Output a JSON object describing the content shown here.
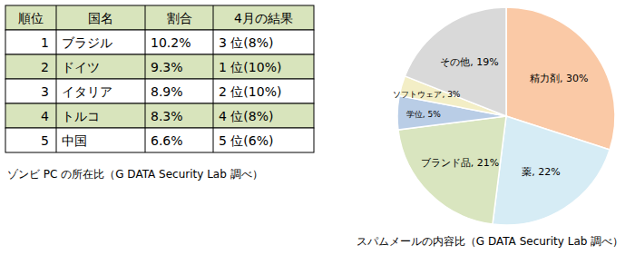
{
  "table": {
    "header": [
      "順位",
      "国名",
      "割合",
      "4月の結果"
    ],
    "rows": [
      [
        1,
        "ブラジル",
        "10.2%",
        "3 位(8%)"
      ],
      [
        2,
        "ドイツ",
        "9.3%",
        "1 位(10%)"
      ],
      [
        3,
        "イタリア",
        "8.9%",
        "2 位(10%)"
      ],
      [
        4,
        "トルコ",
        "8.3%",
        "4 位(8%)"
      ],
      [
        5,
        "中国",
        "6.6%",
        "5 位(6%)"
      ]
    ],
    "caption": "ゾンビ PC の所在比（G DATA Security Lab 調べ）"
  },
  "chart_data": {
    "type": "pie",
    "title": "スパムメールの内容比（G DATA Security Lab 調べ）",
    "categories": [
      "精力剤",
      "薬",
      "ブランド品",
      "学位",
      "ソフトウェア",
      "その他"
    ],
    "values": [
      30,
      22,
      21,
      5,
      3,
      19
    ],
    "value_labels": [
      "30%",
      "22%",
      "21%",
      "5%",
      "3%",
      "19%"
    ],
    "colors": [
      "#fac9a6",
      "#d6ecf5",
      "#d9e5bf",
      "#b9cde6",
      "#f3eec6",
      "#d9d9d9"
    ],
    "data_labels": true
  }
}
